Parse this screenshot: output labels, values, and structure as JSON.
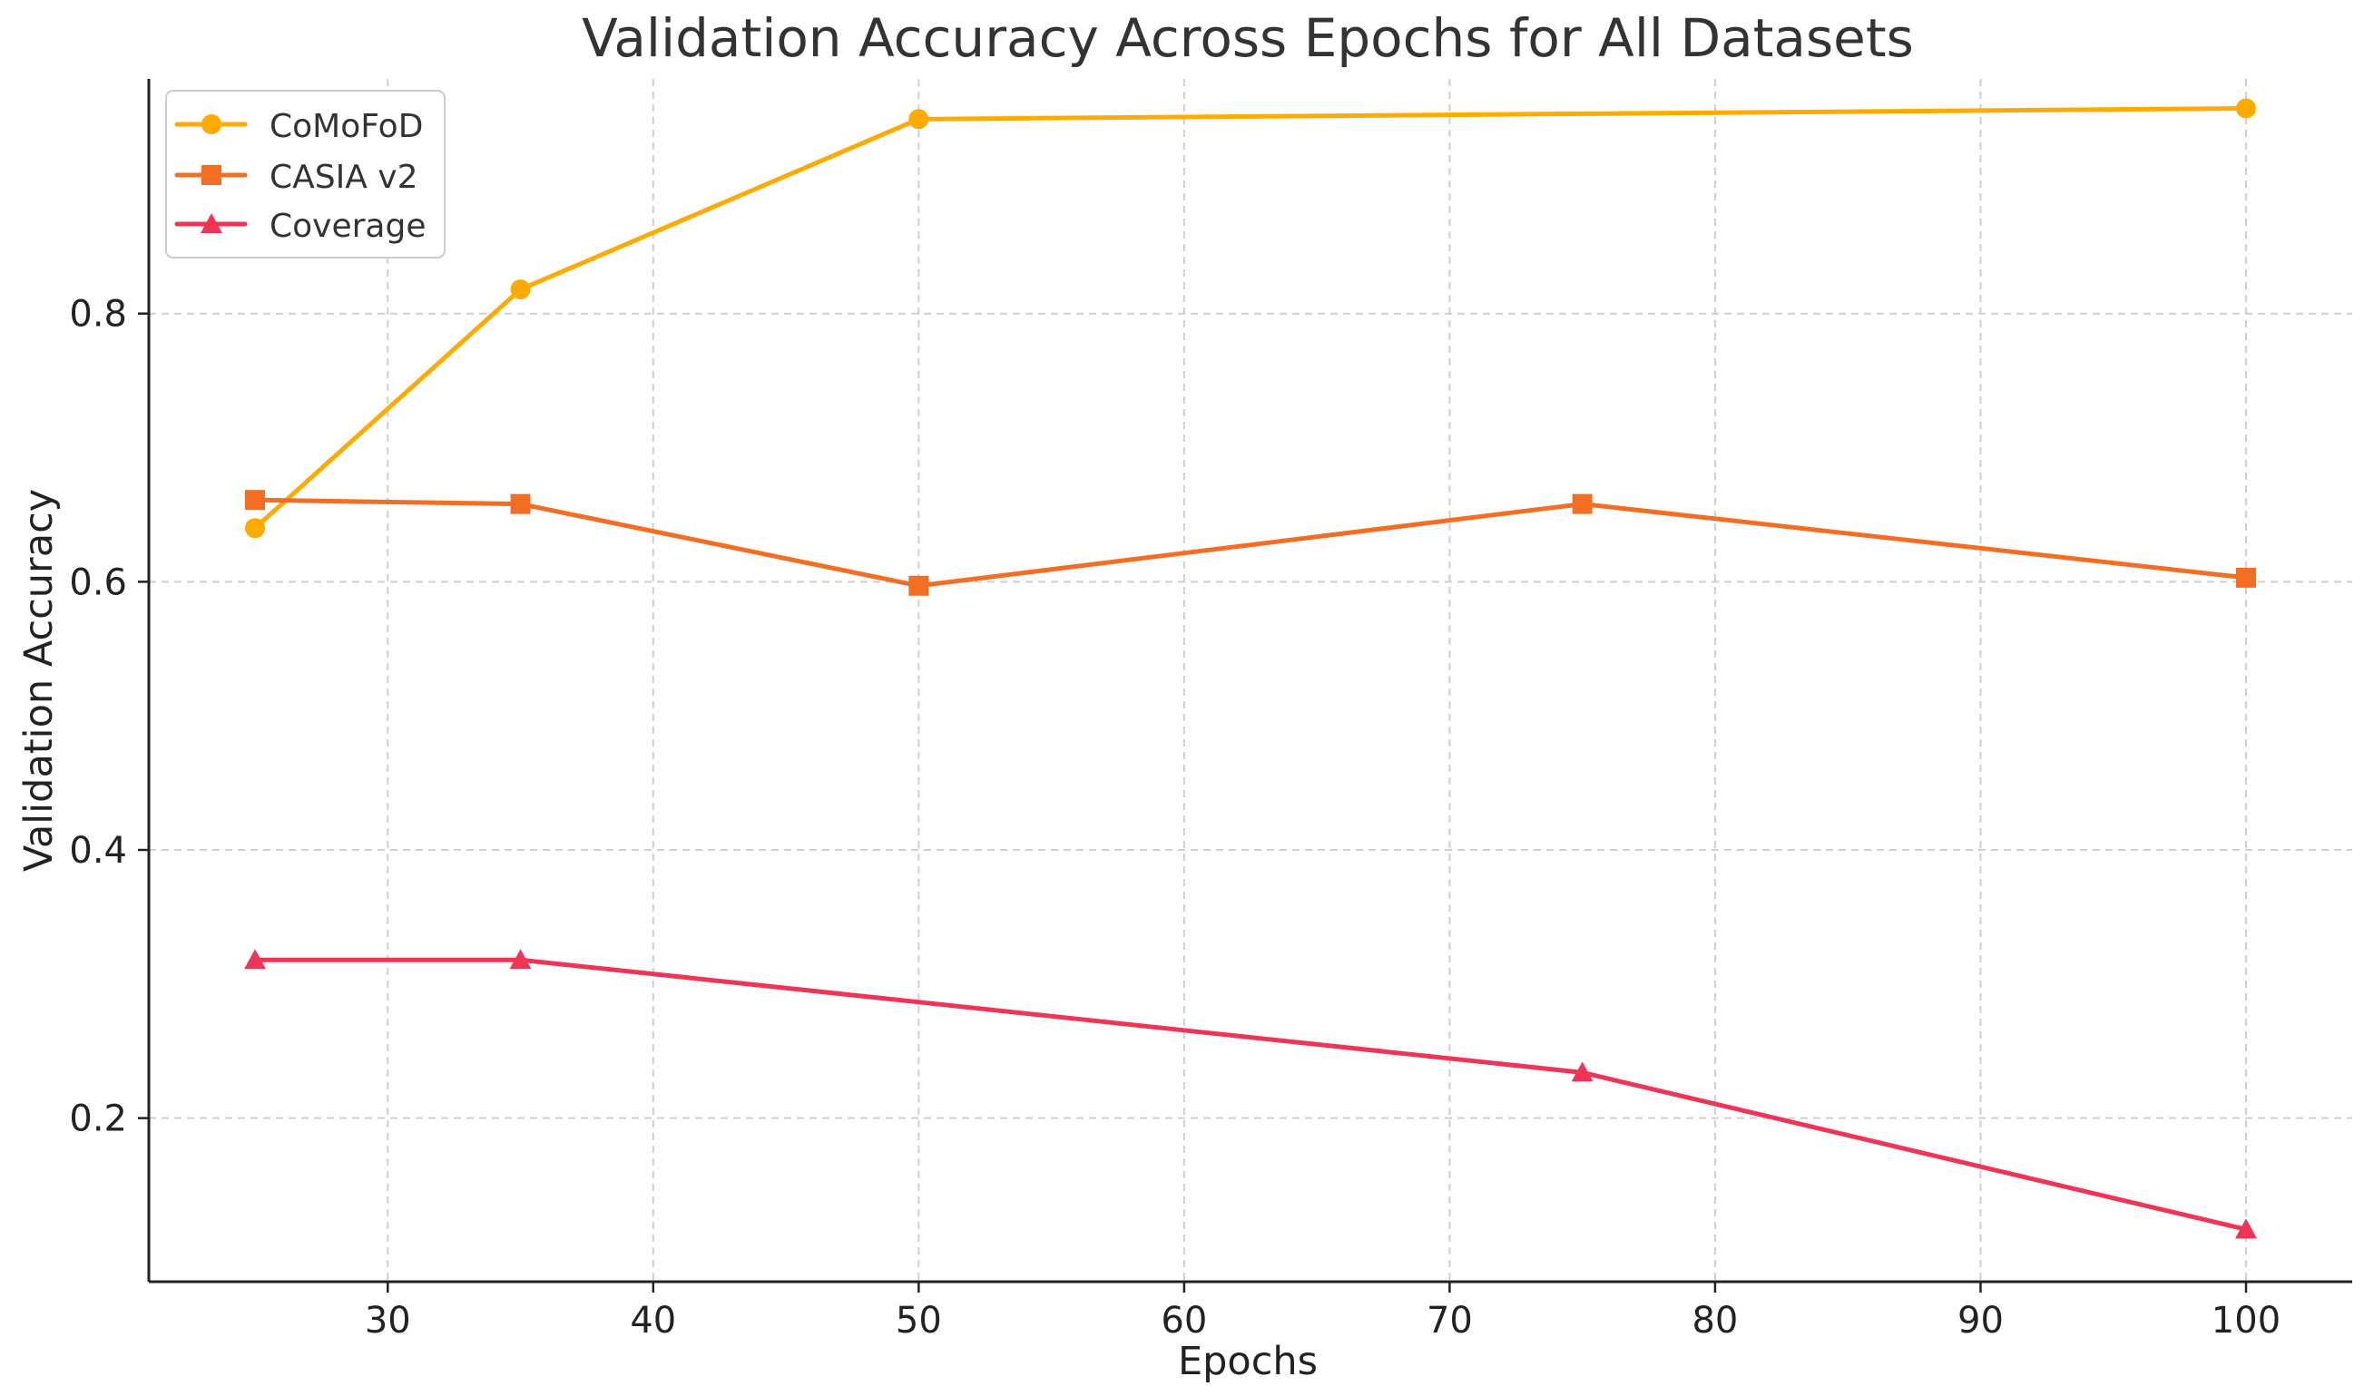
{
  "chart_data": {
    "type": "line",
    "title": "Validation Accuracy Across Epochs for All Datasets",
    "xlabel": "Epochs",
    "ylabel": "Validation Accuracy",
    "xlim": [
      21,
      104
    ],
    "ylim": [
      0.078,
      0.975
    ],
    "xticks": [
      30,
      40,
      50,
      60,
      70,
      80,
      90,
      100
    ],
    "yticks": [
      0.2,
      0.4,
      0.6,
      0.8
    ],
    "xtick_labels": [
      "30",
      "40",
      "50",
      "60",
      "70",
      "80",
      "90",
      "100"
    ],
    "ytick_labels": [
      "0.2",
      "0.4",
      "0.6",
      "0.8"
    ],
    "grid": true,
    "legend_position": "top-left",
    "series": [
      {
        "name": "CoMoFoD",
        "color": "#FFAA00",
        "marker": "circle",
        "x": [
          25,
          35,
          50,
          100
        ],
        "y": [
          0.64,
          0.818,
          0.945,
          0.953
        ]
      },
      {
        "name": "CASIA v2",
        "color": "#F36E23",
        "marker": "square",
        "x": [
          25,
          35,
          50,
          75,
          100
        ],
        "y": [
          0.661,
          0.658,
          0.597,
          0.658,
          0.603
        ]
      },
      {
        "name": "Coverage",
        "color": "#EF3455",
        "marker": "triangle",
        "x": [
          25,
          35,
          75,
          100
        ],
        "y": [
          0.318,
          0.318,
          0.234,
          0.117
        ]
      }
    ]
  }
}
